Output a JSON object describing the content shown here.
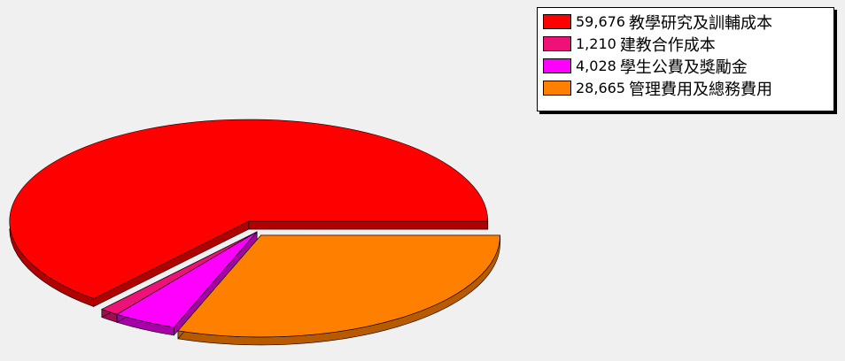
{
  "chart_data": {
    "type": "pie",
    "title": "",
    "legend_position": "top-right",
    "exploded": true,
    "three_d": true,
    "slices": [
      {
        "label": "教學研究及訓輔成本",
        "value_text": "59,676",
        "value": 59676,
        "color": "#ff0000",
        "side_color": "#b00000"
      },
      {
        "label": "建教合作成本",
        "value_text": "1,210",
        "value": 1210,
        "color": "#ee1177",
        "side_color": "#a00c50"
      },
      {
        "label": "學生公費及獎勵金",
        "value_text": "4,028",
        "value": 4028,
        "color": "#ff00ff",
        "side_color": "#a800a8"
      },
      {
        "label": "管理費用及總務費用",
        "value_text": "28,665",
        "value": 28665,
        "color": "#ff8000",
        "side_color": "#b85a00"
      }
    ]
  }
}
